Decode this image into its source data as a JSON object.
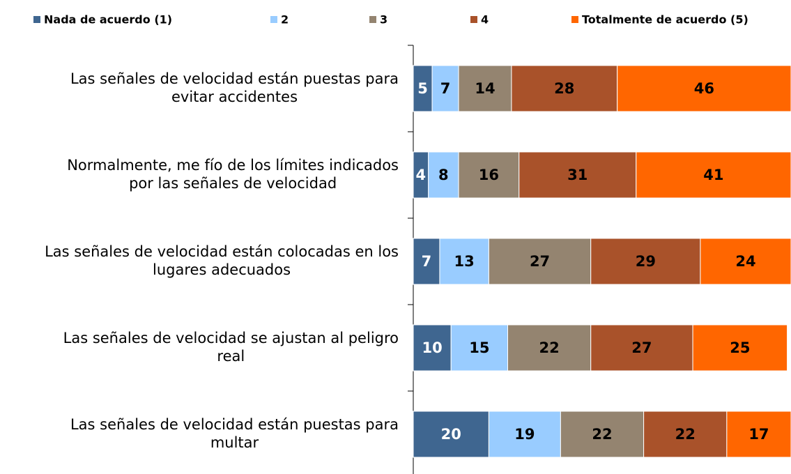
{
  "chart_data": {
    "type": "stacked-bar-horizontal",
    "categories": [
      "Las señales de velocidad están puestas para\nevitar accidentes",
      "Normalmente, me fío de los límites indicados\npor las señales de velocidad",
      "Las señales de velocidad están colocadas en los\nlugares adecuados",
      "Las señales de velocidad se ajustan al peligro\nreal",
      "Las señales de velocidad están puestas para\nmultar"
    ],
    "series": [
      {
        "name": "Nada de acuerdo (1)",
        "color": "#3f6690",
        "label_color": "#ffffff",
        "values": [
          5,
          4,
          7,
          10,
          20
        ]
      },
      {
        "name": "2",
        "color": "#99ccff",
        "label_color": "#000000",
        "values": [
          7,
          8,
          13,
          15,
          19
        ]
      },
      {
        "name": "3",
        "color": "#948470",
        "label_color": "#000000",
        "values": [
          14,
          16,
          27,
          22,
          22
        ]
      },
      {
        "name": "4",
        "color": "#a9522a",
        "label_color": "#000000",
        "values": [
          28,
          31,
          29,
          27,
          22
        ]
      },
      {
        "name": "Totalmente de acuerdo (5)",
        "color": "#ff6600",
        "label_color": "#000000",
        "values": [
          46,
          41,
          24,
          25,
          17
        ]
      }
    ],
    "xlim": [
      0,
      100
    ],
    "legend": "top"
  }
}
